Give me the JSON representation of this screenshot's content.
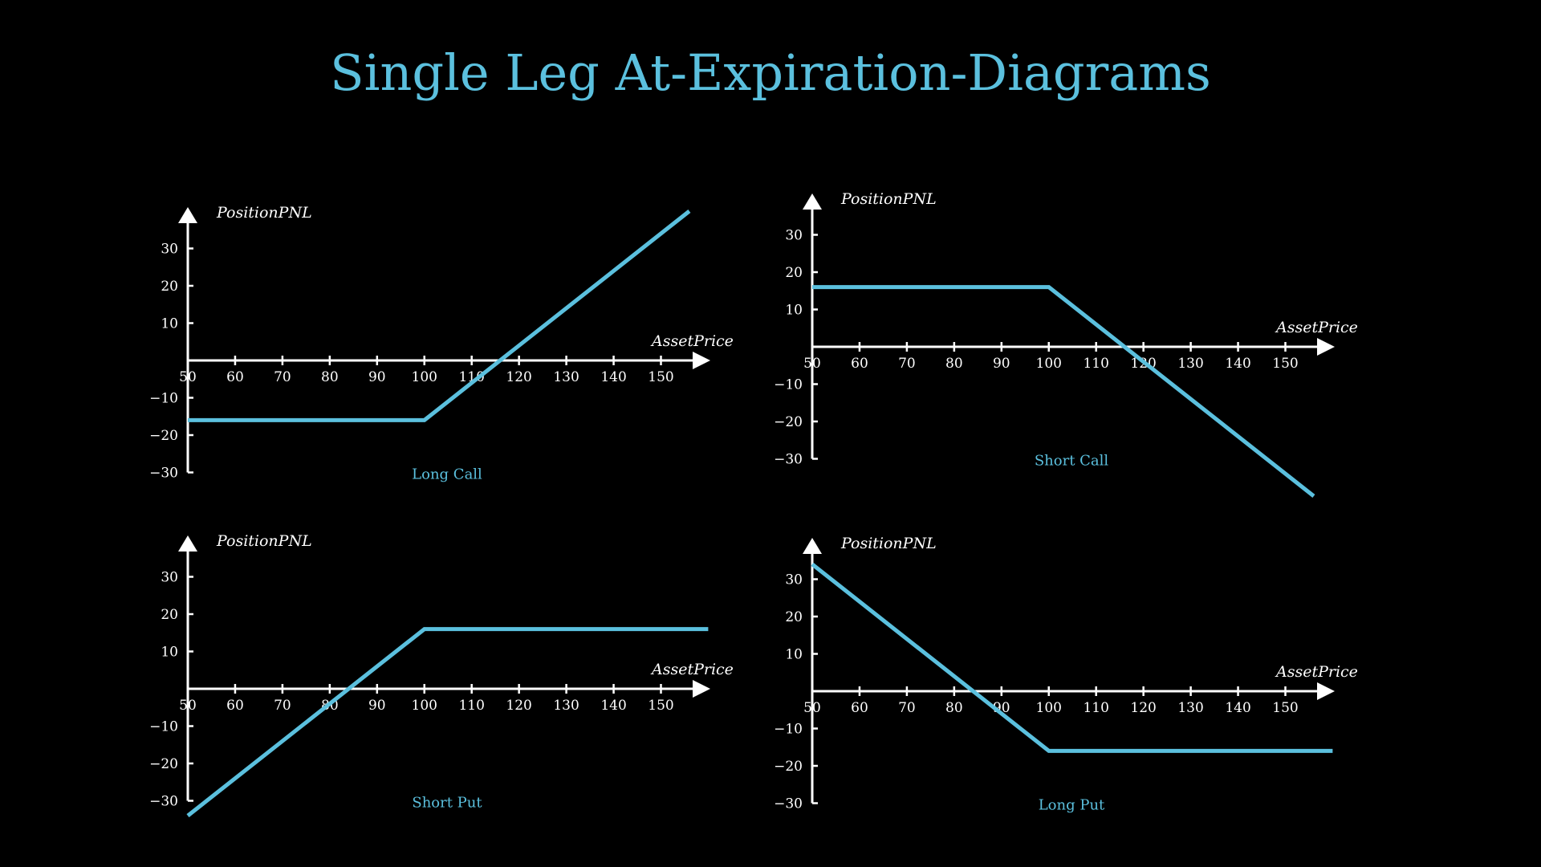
{
  "title": "Single Leg At-Expiration-Diagrams",
  "colors": {
    "background": "#000000",
    "payoff_line": "#5bc0de",
    "axes": "#ffffff",
    "title": "#5bc0de"
  },
  "chart_data": [
    {
      "type": "line",
      "caption": "Long Call",
      "xlabel": "AssetPrice",
      "ylabel": "PositionPNL",
      "x_ticks": [
        50,
        60,
        70,
        80,
        90,
        100,
        110,
        120,
        130,
        140,
        150
      ],
      "y_ticks": [
        -30,
        -20,
        -10,
        10,
        20,
        30
      ],
      "series": [
        {
          "x": [
            50,
            100,
            156
          ],
          "y": [
            -16,
            -16,
            40
          ]
        }
      ]
    },
    {
      "type": "line",
      "caption": "Short Call",
      "xlabel": "AssetPrice",
      "ylabel": "PositionPNL",
      "x_ticks": [
        50,
        60,
        70,
        80,
        90,
        100,
        110,
        120,
        130,
        140,
        150
      ],
      "y_ticks": [
        -30,
        -20,
        -10,
        10,
        20,
        30
      ],
      "series": [
        {
          "x": [
            50,
            100,
            156
          ],
          "y": [
            16,
            16,
            -40
          ]
        }
      ]
    },
    {
      "type": "line",
      "caption": "Short Put",
      "xlabel": "AssetPrice",
      "ylabel": "PositionPNL",
      "x_ticks": [
        50,
        60,
        70,
        80,
        90,
        100,
        110,
        120,
        130,
        140,
        150
      ],
      "y_ticks": [
        -30,
        -20,
        -10,
        10,
        20,
        30
      ],
      "series": [
        {
          "x": [
            50,
            100,
            160
          ],
          "y": [
            -34,
            16,
            16
          ]
        }
      ]
    },
    {
      "type": "line",
      "caption": "Long Put",
      "xlabel": "AssetPrice",
      "ylabel": "PositionPNL",
      "x_ticks": [
        50,
        60,
        70,
        80,
        90,
        100,
        110,
        120,
        130,
        140,
        150
      ],
      "y_ticks": [
        -30,
        -20,
        -10,
        10,
        20,
        30
      ],
      "series": [
        {
          "x": [
            50,
            100,
            160
          ],
          "y": [
            34,
            -16,
            -16
          ]
        }
      ]
    }
  ]
}
